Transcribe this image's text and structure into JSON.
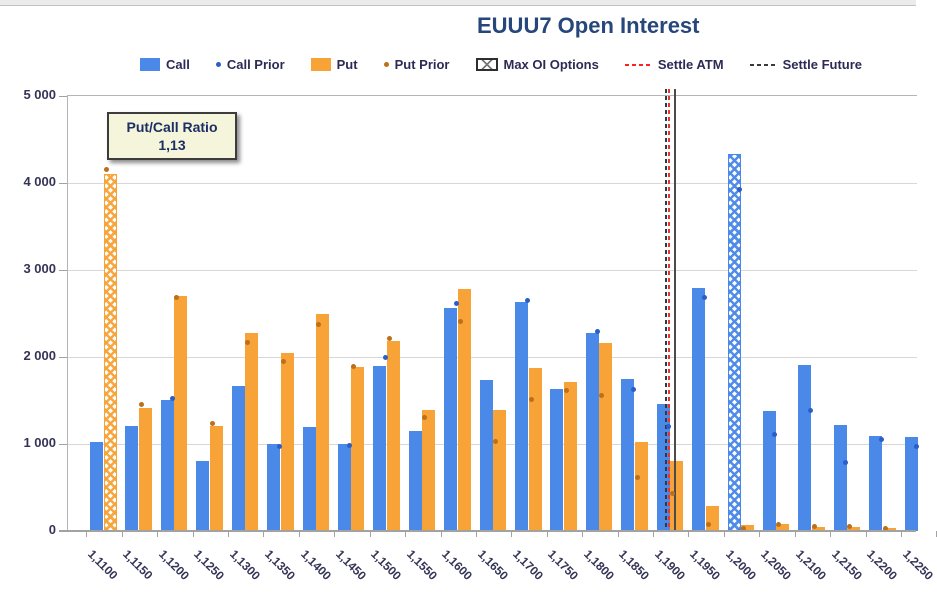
{
  "chart_data": {
    "type": "bar",
    "title": "EUUU7 Open Interest",
    "legend": {
      "call": "Call",
      "call_prior": "Call Prior",
      "put": "Put",
      "put_prior": "Put Prior",
      "max_oi": "Max OI Options",
      "settle_atm": "Settle ATM",
      "settle_future": "Settle Future"
    },
    "annotation": {
      "line1": "Put/Call Ratio",
      "line2": "1,13"
    },
    "ylim": [
      0,
      5000
    ],
    "y_tick_labels": [
      "5 000",
      "4 000",
      "3 000",
      "2 000",
      "1 000",
      "0"
    ],
    "grid": true,
    "legend_position": "top",
    "categories": [
      "1,1100",
      "1,1150",
      "1,1200",
      "1,1250",
      "1,1300",
      "1,1350",
      "1,1400",
      "1,1450",
      "1,1500",
      "1,1550",
      "1,1600",
      "1,1650",
      "1,1700",
      "1,1750",
      "1,1800",
      "1,1850",
      "1,1900",
      "1,1950",
      "1,2000",
      "1,2050",
      "1,2100",
      "1,2150",
      "1,2200",
      "1,2250"
    ],
    "series": [
      {
        "name": "Call",
        "type": "bar",
        "values": [
          1020,
          1210,
          1510,
          810,
          1670,
          1000,
          1200,
          1000,
          1900,
          1150,
          2560,
          1740,
          2630,
          1630,
          2280,
          1750,
          1460,
          2790,
          4330,
          1380,
          1910,
          1220,
          1090,
          1080
        ]
      },
      {
        "name": "Call Prior",
        "type": "point",
        "values": [
          null,
          null,
          1520,
          null,
          null,
          970,
          null,
          980,
          2000,
          null,
          2610,
          null,
          2650,
          null,
          2290,
          1630,
          1200,
          2680,
          3920,
          1110,
          1390,
          790,
          1050,
          970
        ]
      },
      {
        "name": "Put",
        "type": "bar",
        "values": [
          4100,
          1410,
          2700,
          1210,
          2280,
          2050,
          2500,
          1890,
          2180,
          1390,
          2780,
          1390,
          1870,
          1710,
          2160,
          1020,
          800,
          290,
          70,
          80,
          50,
          50,
          30,
          null
        ]
      },
      {
        "name": "Put Prior",
        "type": "point",
        "values": [
          4150,
          1450,
          2680,
          1230,
          2170,
          1950,
          2370,
          1890,
          2210,
          1310,
          2410,
          1030,
          1510,
          1620,
          1560,
          620,
          430,
          70,
          30,
          80,
          50,
          50,
          25,
          null
        ]
      }
    ],
    "max_oi": {
      "call_strike": "1,2000",
      "put_strike": "1,1100"
    },
    "settle_lines": {
      "atm_strike": "1,1900",
      "future_strike": "1,1900"
    },
    "colors": {
      "call_bar": "#4a89e8",
      "call_prior_dot": "#2b5fc7",
      "put_bar": "#f7a337",
      "put_prior_dot": "#bc7019",
      "settle_atm_line": "#e93333",
      "settle_future_line": "#383838",
      "title_text": "#27477b",
      "axis_text": "#343457",
      "annotation_bg": "#f5f5dc",
      "gridline": "#d8d8d8"
    }
  }
}
